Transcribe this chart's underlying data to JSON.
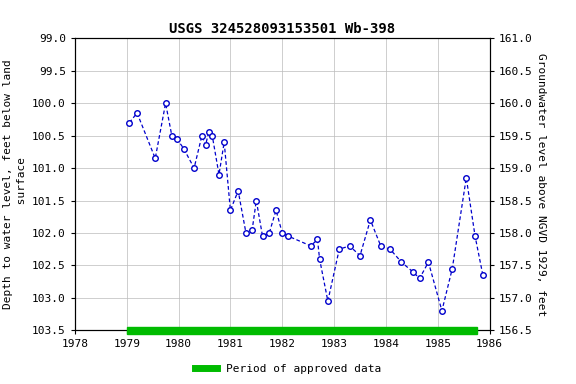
{
  "title": "USGS 324528093153501 Wb-398",
  "ylabel_left": "Depth to water level, feet below land\n surface",
  "ylabel_right": "Groundwater level above NGVD 1929, feet",
  "xlabel": "",
  "ylim_left": [
    99.0,
    103.5
  ],
  "ylim_right": [
    156.5,
    161.0
  ],
  "xlim": [
    1978,
    1986
  ],
  "x_ticks": [
    1978,
    1979,
    1980,
    1981,
    1982,
    1983,
    1984,
    1985,
    1986
  ],
  "y_ticks_left": [
    99.0,
    99.5,
    100.0,
    100.5,
    101.0,
    101.5,
    102.0,
    102.5,
    103.0,
    103.5
  ],
  "y_ticks_right": [
    156.5,
    157.0,
    157.5,
    158.0,
    158.5,
    159.0,
    159.5,
    160.0,
    160.5,
    161.0
  ],
  "data_x": [
    1979.05,
    1979.2,
    1979.55,
    1979.75,
    1979.87,
    1979.97,
    1980.1,
    1980.3,
    1980.45,
    1980.52,
    1980.58,
    1980.65,
    1980.78,
    1980.88,
    1981.0,
    1981.15,
    1981.3,
    1981.42,
    1981.5,
    1981.62,
    1981.75,
    1981.88,
    1982.0,
    1982.12,
    1982.55,
    1982.68,
    1982.72,
    1982.88,
    1983.1,
    1983.3,
    1983.5,
    1983.7,
    1983.9,
    1984.08,
    1984.3,
    1984.52,
    1984.65,
    1984.82,
    1985.08,
    1985.28,
    1985.55,
    1985.72,
    1985.87
  ],
  "data_y": [
    100.3,
    100.15,
    100.85,
    100.0,
    100.5,
    100.55,
    100.7,
    101.0,
    100.5,
    100.65,
    100.45,
    100.5,
    101.1,
    100.6,
    101.65,
    101.35,
    102.0,
    101.95,
    101.5,
    102.05,
    102.0,
    101.65,
    102.0,
    102.05,
    102.2,
    102.1,
    102.4,
    103.05,
    102.25,
    102.2,
    102.35,
    101.8,
    102.2,
    102.25,
    102.45,
    102.6,
    102.7,
    102.45,
    103.2,
    102.55,
    101.15,
    102.05,
    102.65
  ],
  "line_color": "#0000cc",
  "marker_color": "#0000cc",
  "marker_size": 4,
  "green_bar_color": "#00bb00",
  "green_bar_xmin": 1979.0,
  "green_bar_xmax": 1985.75,
  "legend_label": "Period of approved data",
  "background_color": "#ffffff",
  "grid_color": "#bbbbbb",
  "title_fontsize": 10,
  "label_fontsize": 8,
  "tick_fontsize": 8
}
